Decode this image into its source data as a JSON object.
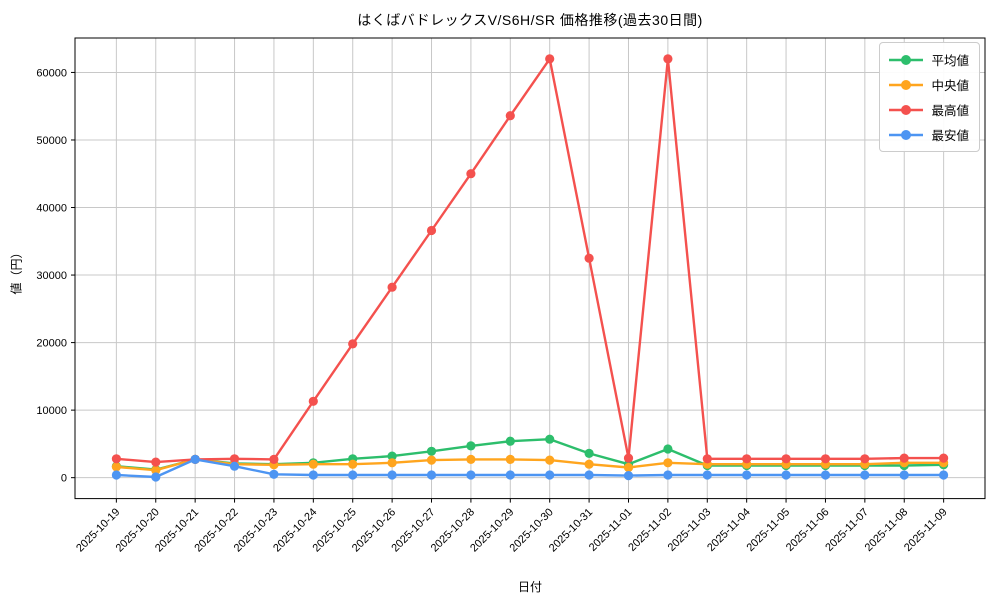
{
  "title": "はくばバドレックスV/S6H/SR 価格推移(過去30日間)",
  "colors": {
    "background": "#ffffff",
    "grid": "#c8c8c8",
    "spine": "#000000",
    "legend_border": "#cccccc",
    "average": "#2dbe6c",
    "median": "#ffa51e",
    "highest": "#f4514e",
    "lowest": "#4d95f2"
  },
  "chart_data": {
    "type": "line",
    "title": "はくばバドレックスV/S6H/SR 価格推移(過去30日間)",
    "xlabel": "日付",
    "ylabel": "値（円）",
    "grid": true,
    "legend_position": "upper right",
    "marker": "circle",
    "ylim": [
      -3100,
      65100
    ],
    "yticks": [
      0,
      10000,
      20000,
      30000,
      40000,
      50000,
      60000
    ],
    "x": [
      "2025-10-19",
      "2025-10-20",
      "2025-10-21",
      "2025-10-22",
      "2025-10-23",
      "2025-10-24",
      "2025-10-25",
      "2025-10-26",
      "2025-10-27",
      "2025-10-28",
      "2025-10-29",
      "2025-10-30",
      "2025-10-31",
      "2025-11-01",
      "2025-11-02",
      "2025-11-03",
      "2025-11-04",
      "2025-11-05",
      "2025-11-06",
      "2025-11-07",
      "2025-11-08",
      "2025-11-09"
    ],
    "series": [
      {
        "key": "average",
        "name": "平均値",
        "color": "#2dbe6c",
        "values": [
          1700,
          1200,
          2700,
          2100,
          2000,
          2200,
          2800,
          3200,
          3900,
          4700,
          5400,
          5700,
          3600,
          2000,
          4250,
          1800,
          1800,
          1800,
          1800,
          1800,
          1800,
          1900
        ]
      },
      {
        "key": "median",
        "name": "中央値",
        "color": "#ffa51e",
        "values": [
          1600,
          1100,
          2700,
          2000,
          1900,
          2000,
          2000,
          2200,
          2600,
          2700,
          2700,
          2600,
          2000,
          1500,
          2200,
          2000,
          2000,
          2000,
          2000,
          2000,
          2200,
          2200
        ]
      },
      {
        "key": "highest",
        "name": "最高値",
        "color": "#f4514e",
        "values": [
          2800,
          2300,
          2700,
          2800,
          2700,
          11300,
          19800,
          28200,
          36600,
          45000,
          53600,
          62000,
          32500,
          2900,
          62000,
          2800,
          2800,
          2800,
          2800,
          2800,
          2900,
          2900
        ]
      },
      {
        "key": "lowest",
        "name": "最安値",
        "color": "#4d95f2",
        "values": [
          400,
          100,
          2700,
          1700,
          500,
          400,
          400,
          400,
          400,
          400,
          400,
          400,
          400,
          300,
          400,
          400,
          400,
          400,
          400,
          400,
          400,
          400
        ]
      }
    ]
  }
}
